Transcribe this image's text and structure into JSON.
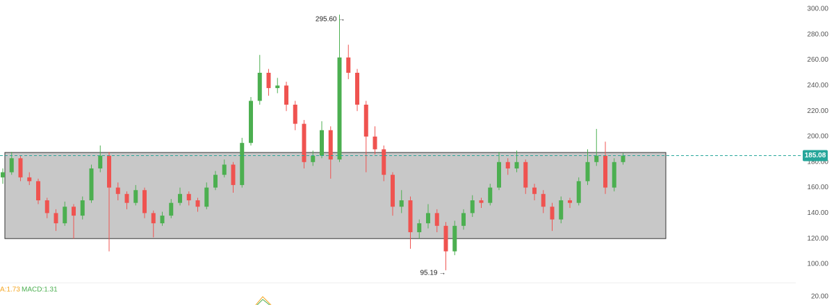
{
  "chart_data": {
    "type": "candlestick",
    "open": [
      168,
      172,
      183,
      168,
      165,
      150,
      140,
      132,
      145,
      138,
      150,
      175,
      185,
      160,
      155,
      148,
      158,
      140,
      132,
      138,
      148,
      155,
      150,
      145,
      160,
      170,
      178,
      162,
      195,
      228,
      250,
      238,
      240,
      225,
      210,
      180,
      185,
      205,
      182,
      262,
      250,
      225,
      200,
      190,
      170,
      145,
      150,
      125,
      132,
      140,
      130,
      110,
      130,
      140,
      150,
      148,
      160,
      180,
      175,
      180,
      160,
      155,
      145,
      135,
      150,
      148,
      165,
      180,
      185,
      160,
      180
    ],
    "high": [
      175,
      188,
      185,
      172,
      167,
      152,
      143,
      149,
      147,
      153,
      178,
      193,
      188,
      164,
      157,
      162,
      160,
      142,
      141,
      151,
      160,
      157,
      152,
      164,
      173,
      182,
      180,
      199,
      231,
      264,
      253,
      246,
      243,
      228,
      213,
      189,
      212,
      208,
      295.6,
      272,
      253,
      228,
      208,
      193,
      172,
      158,
      153,
      135,
      147,
      143,
      133,
      134,
      143,
      154,
      152,
      163,
      188,
      183,
      189,
      182,
      163,
      158,
      148,
      153,
      152,
      168,
      190,
      206,
      196,
      183,
      187
    ],
    "low": [
      163,
      170,
      165,
      162,
      147,
      136,
      126,
      130,
      120,
      135,
      148,
      172,
      110,
      150,
      143,
      146,
      136,
      121,
      130,
      136,
      146,
      146,
      141,
      143,
      158,
      168,
      156,
      160,
      193,
      225,
      232,
      234,
      220,
      205,
      175,
      177,
      183,
      167,
      180,
      245,
      220,
      172,
      186,
      165,
      138,
      140,
      112,
      120,
      128,
      125,
      95.19,
      107,
      127,
      137,
      144,
      146,
      158,
      170,
      172,
      155,
      150,
      140,
      126,
      132,
      144,
      146,
      162,
      177,
      155,
      157,
      178
    ],
    "close": [
      172,
      183,
      168,
      165,
      150,
      140,
      132,
      145,
      138,
      150,
      175,
      185,
      160,
      155,
      148,
      158,
      140,
      132,
      138,
      148,
      155,
      150,
      145,
      160,
      170,
      178,
      162,
      195,
      228,
      250,
      238,
      240,
      225,
      210,
      180,
      185,
      205,
      182,
      262,
      250,
      225,
      200,
      190,
      170,
      145,
      150,
      125,
      132,
      140,
      130,
      110,
      130,
      140,
      150,
      148,
      160,
      180,
      175,
      180,
      160,
      155,
      145,
      135,
      150,
      148,
      165,
      180,
      185,
      160,
      180,
      185.08
    ],
    "up_color": "#4caf50",
    "down_color": "#ef5350",
    "ylim": [
      100,
      300
    ],
    "yticks": [
      {
        "value": 100,
        "label": "100.00"
      },
      {
        "value": 120,
        "label": "120.00"
      },
      {
        "value": 140,
        "label": "140.00"
      },
      {
        "value": 160,
        "label": "160.00"
      },
      {
        "value": 180,
        "label": "180.00"
      },
      {
        "value": 200,
        "label": "200.00"
      },
      {
        "value": 220,
        "label": "220.00"
      },
      {
        "value": 240,
        "label": "240.00"
      },
      {
        "value": 260,
        "label": "260.00"
      },
      {
        "value": 280,
        "label": "280.00"
      },
      {
        "value": 300,
        "label": "300.00"
      }
    ],
    "zone": [
      120,
      187.5
    ],
    "high_label": "295.60",
    "low_label": "95.19",
    "indicator_labels": [
      "A:1.73",
      "MACD:1.31"
    ],
    "indicator_tick": "20.00"
  }
}
